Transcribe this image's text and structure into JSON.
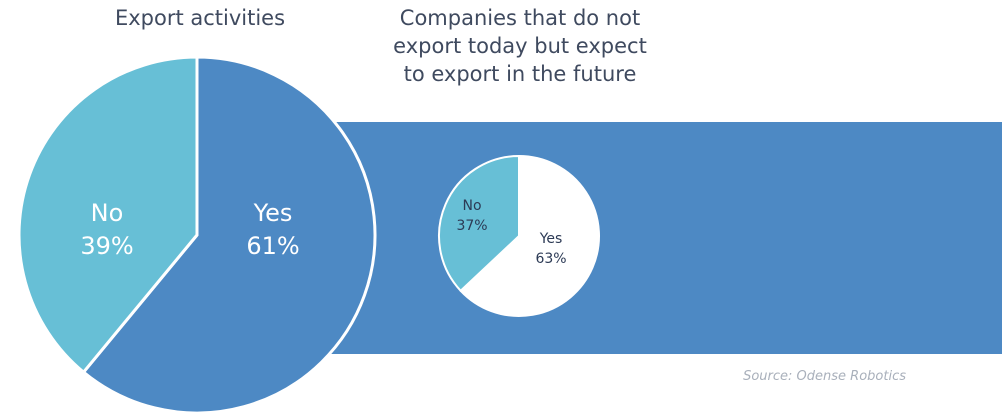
{
  "colors": {
    "yes": "#4d89c4",
    "no_main": "#67bfd6",
    "no_small": "#67bfd6",
    "yes_small": "#ffffff",
    "band": "#4d89c4",
    "label_light": "#ffffff",
    "label_dark": "#2c3a55"
  },
  "titles": {
    "main": "Export activities",
    "future": "Companies that do not\nexport today but expect\nto export in the future"
  },
  "source": "Source: Odense Robotics",
  "chart_data": [
    {
      "type": "pie",
      "title": "Export activities",
      "categories": [
        "Yes",
        "No"
      ],
      "values": [
        61,
        39
      ],
      "labels": [
        {
          "line1": "Yes",
          "line2": "61%"
        },
        {
          "line1": "No",
          "line2": "39%"
        }
      ]
    },
    {
      "type": "pie",
      "title": "Companies that do not export today but expect to export in the future",
      "categories": [
        "Yes",
        "No"
      ],
      "values": [
        63,
        37
      ],
      "labels": [
        {
          "line1": "Yes",
          "line2": "63%"
        },
        {
          "line1": "No",
          "line2": "37%"
        }
      ]
    }
  ]
}
